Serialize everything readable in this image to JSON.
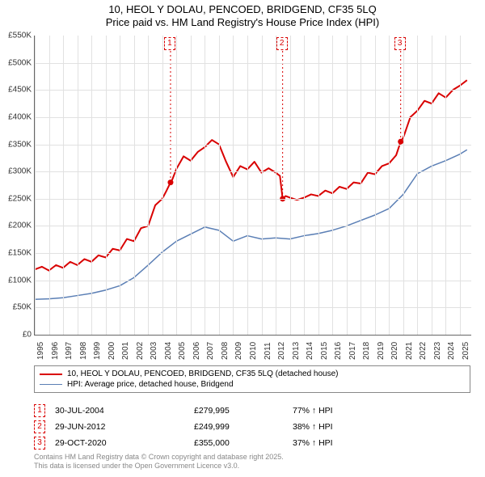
{
  "title_line1": "10, HEOL Y DOLAU, PENCOED, BRIDGEND, CF35 5LQ",
  "title_line2": "Price paid vs. HM Land Registry's House Price Index (HPI)",
  "chart": {
    "type": "line",
    "background_color": "#ffffff",
    "grid_color": "#e1e1e1",
    "axis_color": "#666666",
    "label_fontsize": 10,
    "xlim": [
      1995,
      2025.8
    ],
    "ylim": [
      0,
      550000
    ],
    "yticks": [
      0,
      50000,
      100000,
      150000,
      200000,
      250000,
      300000,
      350000,
      400000,
      450000,
      500000,
      550000
    ],
    "ytick_labels": [
      "£0",
      "£50K",
      "£100K",
      "£150K",
      "£200K",
      "£250K",
      "£300K",
      "£350K",
      "£400K",
      "£450K",
      "£500K",
      "£550K"
    ],
    "xticks": [
      1995,
      1996,
      1997,
      1998,
      1999,
      2000,
      2001,
      2002,
      2003,
      2004,
      2005,
      2006,
      2007,
      2008,
      2009,
      2010,
      2011,
      2012,
      2013,
      2014,
      2015,
      2016,
      2017,
      2018,
      2019,
      2020,
      2021,
      2022,
      2023,
      2024,
      2025
    ],
    "series": [
      {
        "name": "property",
        "color": "#d90000",
        "line_width": 2,
        "points": [
          [
            1995,
            120000
          ],
          [
            1995.5,
            125000
          ],
          [
            1996,
            118000
          ],
          [
            1996.5,
            128000
          ],
          [
            1997,
            123000
          ],
          [
            1997.5,
            134000
          ],
          [
            1998,
            128000
          ],
          [
            1998.5,
            139000
          ],
          [
            1999,
            134000
          ],
          [
            1999.5,
            146000
          ],
          [
            2000,
            142000
          ],
          [
            2000.5,
            158000
          ],
          [
            2001,
            155000
          ],
          [
            2001.5,
            176000
          ],
          [
            2002,
            172000
          ],
          [
            2002.5,
            196000
          ],
          [
            2003,
            200000
          ],
          [
            2003.5,
            238000
          ],
          [
            2004,
            250000
          ],
          [
            2004.3,
            265000
          ],
          [
            2004.58,
            279995
          ],
          [
            2004.7,
            285000
          ],
          [
            2005,
            305000
          ],
          [
            2005.5,
            328000
          ],
          [
            2006,
            320000
          ],
          [
            2006.5,
            336000
          ],
          [
            2007,
            345000
          ],
          [
            2007.5,
            358000
          ],
          [
            2008,
            350000
          ],
          [
            2008.5,
            318000
          ],
          [
            2009,
            290000
          ],
          [
            2009.5,
            310000
          ],
          [
            2010,
            304000
          ],
          [
            2010.5,
            318000
          ],
          [
            2011,
            298000
          ],
          [
            2011.5,
            306000
          ],
          [
            2012,
            298000
          ],
          [
            2012.3,
            292000
          ],
          [
            2012.49,
            249999
          ],
          [
            2012.7,
            255000
          ],
          [
            2013,
            252000
          ],
          [
            2013.5,
            248000
          ],
          [
            2014,
            252000
          ],
          [
            2014.5,
            258000
          ],
          [
            2015,
            255000
          ],
          [
            2015.5,
            265000
          ],
          [
            2016,
            260000
          ],
          [
            2016.5,
            272000
          ],
          [
            2017,
            268000
          ],
          [
            2017.5,
            280000
          ],
          [
            2018,
            278000
          ],
          [
            2018.5,
            298000
          ],
          [
            2019,
            295000
          ],
          [
            2019.5,
            310000
          ],
          [
            2020,
            315000
          ],
          [
            2020.5,
            330000
          ],
          [
            2020.82,
            355000
          ],
          [
            2021,
            362000
          ],
          [
            2021.5,
            400000
          ],
          [
            2022,
            412000
          ],
          [
            2022.5,
            430000
          ],
          [
            2023,
            425000
          ],
          [
            2023.5,
            444000
          ],
          [
            2024,
            436000
          ],
          [
            2024.5,
            450000
          ],
          [
            2025,
            458000
          ],
          [
            2025.5,
            468000
          ]
        ]
      },
      {
        "name": "hpi",
        "color": "#5b7fb5",
        "line_width": 1.5,
        "points": [
          [
            1995,
            65000
          ],
          [
            1996,
            66000
          ],
          [
            1997,
            68000
          ],
          [
            1998,
            72000
          ],
          [
            1999,
            76000
          ],
          [
            2000,
            82000
          ],
          [
            2001,
            90000
          ],
          [
            2002,
            105000
          ],
          [
            2003,
            128000
          ],
          [
            2004,
            152000
          ],
          [
            2005,
            172000
          ],
          [
            2006,
            185000
          ],
          [
            2007,
            198000
          ],
          [
            2008,
            192000
          ],
          [
            2009,
            172000
          ],
          [
            2010,
            182000
          ],
          [
            2011,
            176000
          ],
          [
            2012,
            178000
          ],
          [
            2013,
            176000
          ],
          [
            2014,
            182000
          ],
          [
            2015,
            186000
          ],
          [
            2016,
            192000
          ],
          [
            2017,
            200000
          ],
          [
            2018,
            210000
          ],
          [
            2019,
            220000
          ],
          [
            2020,
            232000
          ],
          [
            2021,
            258000
          ],
          [
            2022,
            296000
          ],
          [
            2023,
            310000
          ],
          [
            2024,
            320000
          ],
          [
            2025,
            332000
          ],
          [
            2025.5,
            340000
          ]
        ]
      }
    ],
    "markers": [
      {
        "n": "1",
        "x": 2004.58,
        "y": 279995,
        "color": "#d90000"
      },
      {
        "n": "2",
        "x": 2012.49,
        "y": 249999,
        "color": "#d90000"
      },
      {
        "n": "3",
        "x": 2020.82,
        "y": 355000,
        "color": "#d90000"
      }
    ]
  },
  "legend": {
    "items": [
      {
        "color": "#d90000",
        "width": 2,
        "label": "10, HEOL Y DOLAU, PENCOED, BRIDGEND, CF35 5LQ (detached house)"
      },
      {
        "color": "#5b7fb5",
        "width": 1.5,
        "label": "HPI: Average price, detached house, Bridgend"
      }
    ]
  },
  "sales_table": {
    "rows": [
      {
        "n": "1",
        "color": "#d90000",
        "date": "30-JUL-2004",
        "price": "£279,995",
        "hpi": "77% ↑ HPI"
      },
      {
        "n": "2",
        "color": "#d90000",
        "date": "29-JUN-2012",
        "price": "£249,999",
        "hpi": "38% ↑ HPI"
      },
      {
        "n": "3",
        "color": "#d90000",
        "date": "29-OCT-2020",
        "price": "£355,000",
        "hpi": "37% ↑ HPI"
      }
    ]
  },
  "footer_line1": "Contains HM Land Registry data © Crown copyright and database right 2025.",
  "footer_line2": "This data is licensed under the Open Government Licence v3.0."
}
